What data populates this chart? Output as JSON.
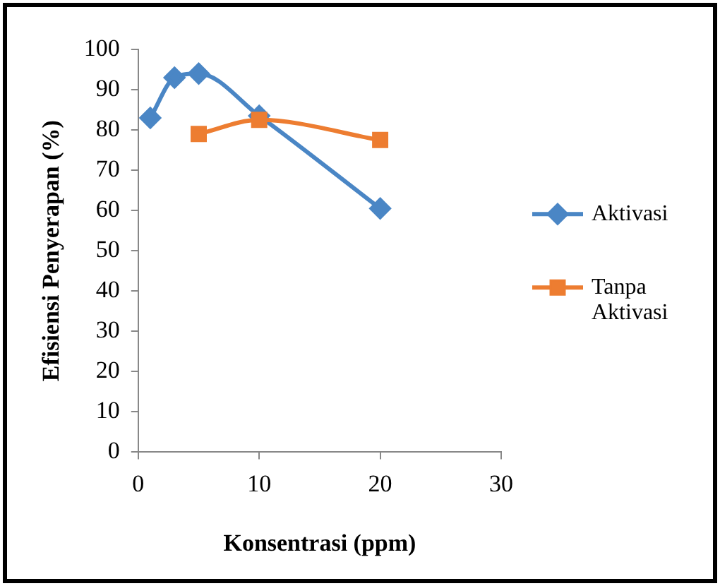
{
  "chart_data": {
    "type": "line",
    "xlabel": "Konsentrasi (ppm)",
    "ylabel": "Efisiensi Penyerapan (%)",
    "xlim": [
      0,
      30
    ],
    "xticks": [
      0,
      10,
      20,
      30
    ],
    "ylim": [
      0,
      100
    ],
    "yticks": [
      0,
      10,
      20,
      30,
      40,
      50,
      60,
      70,
      80,
      90,
      100
    ],
    "grid": false,
    "legend": "right",
    "series": [
      {
        "name": "Aktivasi",
        "color": "#4a86c5",
        "marker": "diamond",
        "x": [
          1,
          3,
          5,
          10,
          20
        ],
        "values": [
          83,
          93,
          94,
          83.5,
          60.5
        ]
      },
      {
        "name": "Tanpa Aktivasi",
        "color": "#ed7d31",
        "marker": "square",
        "x": [
          5,
          10,
          20
        ],
        "values": [
          79,
          82.5,
          77.5
        ]
      }
    ]
  }
}
